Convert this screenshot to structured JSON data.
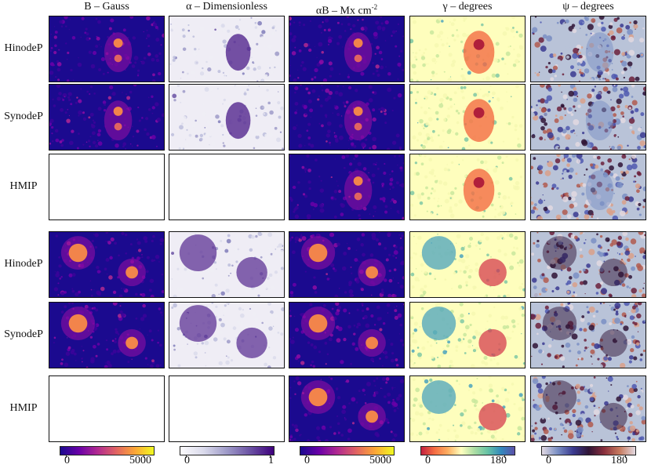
{
  "columns": [
    {
      "title": "B – Gauss",
      "cmap": "plasma"
    },
    {
      "title": "α – Dimensionless",
      "cmap": "purples"
    },
    {
      "title": "αB – Mx cm",
      "sup": "-2",
      "cmap": "plasma"
    },
    {
      "title": "γ – degrees",
      "cmap": "spectral"
    },
    {
      "title": "ψ – degrees",
      "cmap": "twilight"
    }
  ],
  "groups": [
    {
      "rows": [
        {
          "label": "HinodeP",
          "empty": []
        },
        {
          "label": "SynodeP",
          "empty": []
        },
        {
          "label": "HMIP",
          "empty": [
            0,
            1
          ]
        }
      ]
    },
    {
      "rows": [
        {
          "label": "HinodeP",
          "empty": []
        },
        {
          "label": "SynodeP",
          "empty": []
        },
        {
          "label": "HMIP",
          "empty": [
            0,
            1
          ]
        }
      ]
    }
  ],
  "colorbars": [
    {
      "ticks": [
        "0",
        "5000"
      ],
      "colors": [
        "#1b0a8f",
        "#6a00a8",
        "#b12a90",
        "#e16462",
        "#fca636",
        "#f0f921"
      ]
    },
    {
      "ticks": [
        "0",
        "1"
      ],
      "colors": [
        "#fcfbfd",
        "#dadaeb",
        "#9e9ac8",
        "#6a51a3",
        "#3f007d"
      ]
    },
    {
      "ticks": [
        "0",
        "5000"
      ],
      "colors": [
        "#1b0a8f",
        "#6a00a8",
        "#b12a90",
        "#e16462",
        "#fca636",
        "#f0f921"
      ]
    },
    {
      "ticks": [
        "0",
        "180"
      ],
      "colors": [
        "#c2203f",
        "#f46d43",
        "#fdae61",
        "#ffffbf",
        "#abdda4",
        "#66c2a5",
        "#3288bd",
        "#5b50a8"
      ]
    },
    {
      "ticks": [
        "0",
        "180"
      ],
      "colors": [
        "#e2d9e2",
        "#7a8fc4",
        "#3a3a90",
        "#2f1436",
        "#8a2f3d",
        "#c87b5f",
        "#e2d9e2"
      ]
    }
  ]
}
